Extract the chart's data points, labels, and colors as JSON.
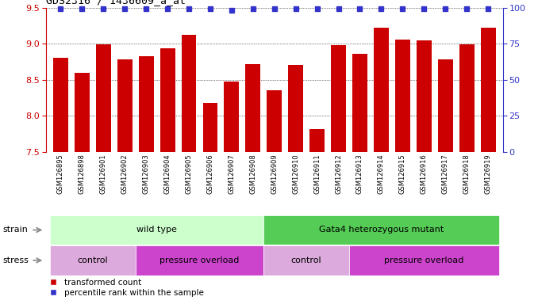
{
  "title": "GDS2316 / 1436609_a_at",
  "samples": [
    "GSM126895",
    "GSM126898",
    "GSM126901",
    "GSM126902",
    "GSM126903",
    "GSM126904",
    "GSM126905",
    "GSM126906",
    "GSM126907",
    "GSM126908",
    "GSM126909",
    "GSM126910",
    "GSM126911",
    "GSM126912",
    "GSM126913",
    "GSM126914",
    "GSM126915",
    "GSM126916",
    "GSM126917",
    "GSM126918",
    "GSM126919"
  ],
  "transformed_counts": [
    8.8,
    8.6,
    8.99,
    8.78,
    8.83,
    8.94,
    9.12,
    8.18,
    8.48,
    8.72,
    8.35,
    8.71,
    7.82,
    8.98,
    8.86,
    9.22,
    9.06,
    9.05,
    8.78,
    8.99,
    9.22
  ],
  "percentile_ranks": [
    99,
    99,
    99,
    99,
    99,
    99,
    99,
    99,
    98,
    99,
    99,
    99,
    99,
    99,
    99,
    99,
    99,
    99,
    99,
    99,
    99
  ],
  "ylim_left": [
    7.5,
    9.5
  ],
  "ylim_right": [
    0,
    100
  ],
  "yticks_left": [
    7.5,
    8.0,
    8.5,
    9.0,
    9.5
  ],
  "yticks_right": [
    0,
    25,
    50,
    75,
    100
  ],
  "bar_color": "#cc0000",
  "dot_color": "#3333cc",
  "tick_bg_color": "#d8d8d8",
  "tick_border_color": "#aaaaaa",
  "strain_groups": [
    {
      "label": "wild type",
      "start": 0,
      "end": 10,
      "color": "#ccffcc"
    },
    {
      "label": "Gata4 heterozygous mutant",
      "start": 10,
      "end": 21,
      "color": "#55cc55"
    }
  ],
  "stress_groups": [
    {
      "label": "control",
      "start": 0,
      "end": 4,
      "color": "#ddaadd"
    },
    {
      "label": "pressure overload",
      "start": 4,
      "end": 10,
      "color": "#cc44cc"
    },
    {
      "label": "control",
      "start": 10,
      "end": 14,
      "color": "#ddaadd"
    },
    {
      "label": "pressure overload",
      "start": 14,
      "end": 21,
      "color": "#cc44cc"
    }
  ]
}
